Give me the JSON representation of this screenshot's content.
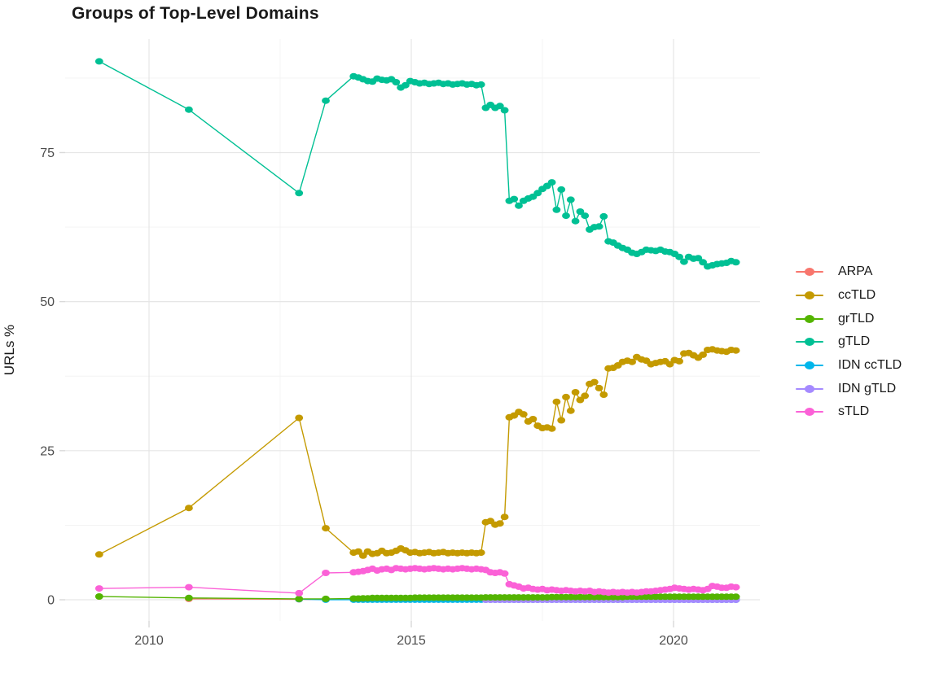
{
  "title": "Groups of Top-Level Domains",
  "ylabel": "URLs %",
  "chart_data": {
    "type": "line",
    "title": "Groups of Top-Level Domains",
    "xlabel": "",
    "ylabel": "URLs %",
    "grid": true,
    "legend_position": "right",
    "xlim": [
      2008.4,
      2021.65
    ],
    "ylim": [
      -3.5,
      94.5
    ],
    "x_major_ticks": [
      2010,
      2015,
      2020
    ],
    "x_minor_ticks": [
      2012.5,
      2017.5
    ],
    "y_major_ticks": [
      0,
      25,
      50,
      75
    ],
    "y_minor_ticks": [
      12.5,
      37.5,
      62.5,
      87.5
    ],
    "legend_order": [
      "ARPA",
      "ccTLD",
      "grTLD",
      "gTLD",
      "IDN ccTLD",
      "IDN gTLD",
      "sTLD"
    ],
    "draw_order": [
      "ARPA",
      "IDN ccTLD",
      "IDN gTLD",
      "ccTLD",
      "gTLD",
      "grTLD",
      "sTLD"
    ],
    "series": [
      {
        "name": "ARPA",
        "color": "#F8766D",
        "head": [
          [
            2010.76,
            0.15
          ],
          [
            2012.86,
            0.08
          ],
          [
            2013.37,
            0.05
          ]
        ],
        "dense": {
          "start": 2013.9,
          "step": 0.09,
          "count": 82,
          "const": 0.05
        }
      },
      {
        "name": "ccTLD",
        "color": "#C49A00",
        "head": [
          [
            2009.05,
            7.6
          ],
          [
            2010.76,
            15.4
          ],
          [
            2012.86,
            30.5
          ],
          [
            2013.37,
            12.0
          ]
        ],
        "dense": {
          "start": 2013.9,
          "step": 0.09,
          "values": [
            7.9,
            8.1,
            7.4,
            8.1,
            7.7,
            7.8,
            8.2,
            7.8,
            7.9,
            8.2,
            8.6,
            8.3,
            7.9,
            8.0,
            7.8,
            7.9,
            8.0,
            7.8,
            7.9,
            8.0,
            7.8,
            7.9,
            7.8,
            7.9,
            7.8,
            7.9,
            7.8,
            7.9,
            13.0,
            13.2,
            12.6,
            12.8,
            13.9,
            30.6,
            30.9,
            31.5,
            31.1,
            29.9,
            30.3,
            29.2,
            28.8,
            28.9,
            28.7,
            33.2,
            30.1,
            34.0,
            31.7,
            34.8,
            33.5,
            34.2,
            36.2,
            36.5,
            35.5,
            34.4,
            38.8,
            38.9,
            39.3,
            39.9,
            40.1,
            39.9,
            40.7,
            40.3,
            40.1,
            39.5,
            39.7,
            39.9,
            40.0,
            39.5,
            40.2,
            40.0,
            41.3,
            41.4,
            41.0,
            40.6,
            41.1,
            41.9,
            42.0,
            41.8,
            41.7,
            41.6,
            41.9,
            41.8
          ]
        }
      },
      {
        "name": "grTLD",
        "color": "#53B400",
        "head": [
          [
            2009.05,
            0.55
          ],
          [
            2010.76,
            0.3
          ],
          [
            2012.86,
            0.15
          ],
          [
            2013.37,
            0.15
          ]
        ],
        "dense": {
          "start": 2013.9,
          "step": 0.09,
          "values": [
            0.2,
            0.2,
            0.25,
            0.25,
            0.3,
            0.3,
            0.3,
            0.3,
            0.3,
            0.3,
            0.3,
            0.3,
            0.3,
            0.35,
            0.35,
            0.35,
            0.35,
            0.35,
            0.35,
            0.35,
            0.35,
            0.35,
            0.35,
            0.35,
            0.35,
            0.35,
            0.35,
            0.35,
            0.4,
            0.4,
            0.4,
            0.4,
            0.4,
            0.4,
            0.4,
            0.4,
            0.4,
            0.4,
            0.4,
            0.4,
            0.4,
            0.4,
            0.45,
            0.45,
            0.45,
            0.45,
            0.45,
            0.45,
            0.45,
            0.45,
            0.45,
            0.45,
            0.45,
            0.45,
            0.45,
            0.45,
            0.45,
            0.45,
            0.5,
            0.5,
            0.5,
            0.5,
            0.5,
            0.5,
            0.5,
            0.5,
            0.5,
            0.5,
            0.5,
            0.5,
            0.5,
            0.5,
            0.5,
            0.5,
            0.5,
            0.5,
            0.5,
            0.5,
            0.5,
            0.5,
            0.5,
            0.5
          ]
        }
      },
      {
        "name": "gTLD",
        "color": "#00C094",
        "head": [
          [
            2009.05,
            90.3
          ],
          [
            2010.76,
            82.2
          ],
          [
            2012.86,
            68.2
          ],
          [
            2013.37,
            83.7
          ]
        ],
        "dense": {
          "start": 2013.9,
          "step": 0.09,
          "values": [
            87.8,
            87.6,
            87.3,
            87.0,
            86.9,
            87.4,
            87.2,
            87.1,
            87.3,
            86.8,
            85.9,
            86.3,
            87.0,
            86.8,
            86.6,
            86.7,
            86.5,
            86.6,
            86.7,
            86.5,
            86.6,
            86.4,
            86.5,
            86.6,
            86.4,
            86.5,
            86.3,
            86.4,
            82.5,
            83.0,
            82.5,
            82.8,
            82.1,
            66.9,
            67.2,
            66.1,
            66.9,
            67.3,
            67.6,
            68.2,
            68.9,
            69.4,
            70.0,
            65.4,
            68.8,
            64.4,
            67.1,
            63.5,
            65.1,
            64.4,
            62.1,
            62.5,
            62.6,
            64.3,
            60.1,
            59.9,
            59.4,
            59.0,
            58.7,
            58.2,
            58.0,
            58.3,
            58.7,
            58.6,
            58.5,
            58.7,
            58.4,
            58.3,
            58.0,
            57.5,
            56.7,
            57.5,
            57.2,
            57.3,
            56.6,
            55.9,
            56.1,
            56.3,
            56.4,
            56.5,
            56.8,
            56.6
          ]
        }
      },
      {
        "name": "IDN ccTLD",
        "color": "#00B6EB",
        "head": [
          [
            2012.86,
            0.1
          ],
          [
            2013.37,
            0.02
          ]
        ],
        "dense": {
          "start": 2013.9,
          "step": 0.09,
          "count": 82,
          "const": 0.02
        }
      },
      {
        "name": "IDN gTLD",
        "color": "#A58AFF",
        "head": [],
        "dense": {
          "start": 2016.42,
          "step": 0.09,
          "count": 54,
          "const": 0.0
        }
      },
      {
        "name": "sTLD",
        "color": "#FB61D7",
        "head": [
          [
            2009.05,
            1.9
          ],
          [
            2010.76,
            2.1
          ],
          [
            2012.86,
            1.1
          ],
          [
            2013.37,
            4.5
          ]
        ],
        "dense": {
          "start": 2013.9,
          "step": 0.09,
          "values": [
            4.6,
            4.7,
            4.8,
            5.0,
            5.2,
            4.9,
            5.1,
            5.2,
            5.0,
            5.3,
            5.2,
            5.1,
            5.2,
            5.3,
            5.2,
            5.1,
            5.2,
            5.3,
            5.2,
            5.1,
            5.2,
            5.1,
            5.2,
            5.3,
            5.2,
            5.1,
            5.2,
            5.1,
            5.0,
            4.6,
            4.5,
            4.6,
            4.4,
            2.6,
            2.4,
            2.2,
            1.9,
            2.0,
            1.8,
            1.7,
            1.8,
            1.6,
            1.7,
            1.6,
            1.5,
            1.6,
            1.5,
            1.4,
            1.5,
            1.4,
            1.5,
            1.3,
            1.4,
            1.3,
            1.2,
            1.3,
            1.2,
            1.3,
            1.2,
            1.3,
            1.2,
            1.3,
            1.4,
            1.4,
            1.5,
            1.6,
            1.7,
            1.8,
            2.0,
            1.9,
            1.8,
            1.7,
            1.8,
            1.7,
            1.6,
            1.8,
            2.3,
            2.2,
            2.0,
            2.0,
            2.2,
            2.1
          ]
        }
      }
    ]
  },
  "style_colors": {
    "axis_text": "#4d4d4d",
    "grid_major": "#e6e6e6",
    "grid_minor": "#f3f3f3",
    "tick_mark": "#d9d9d9",
    "text": "#1a1a1a"
  }
}
